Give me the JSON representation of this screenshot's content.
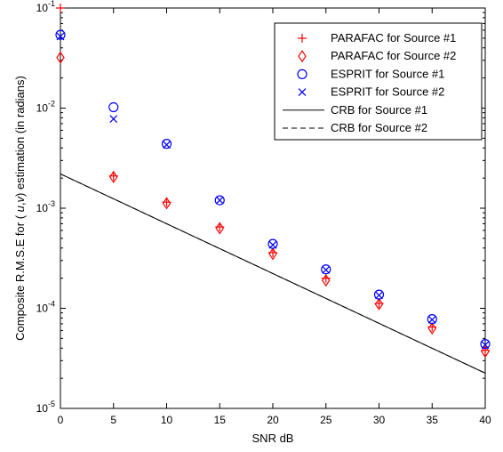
{
  "chart_data": {
    "type": "scatter",
    "xlabel": "SNR dB",
    "ylabel_parts": [
      "Composite R.M.S.E for ( ",
      "u",
      ",",
      "v",
      ") estimation (in radians)"
    ],
    "x_ticks": [
      0,
      5,
      10,
      15,
      20,
      25,
      30,
      35,
      40
    ],
    "y_ticks": [
      {
        "value": 1e-05,
        "base": "10",
        "exp": "-5"
      },
      {
        "value": 0.0001,
        "base": "10",
        "exp": "-4"
      },
      {
        "value": 0.001,
        "base": "10",
        "exp": "-3"
      },
      {
        "value": 0.01,
        "base": "10",
        "exp": "-2"
      },
      {
        "value": 0.1,
        "base": "10",
        "exp": "-1"
      }
    ],
    "xlim": [
      0,
      40
    ],
    "ylim": [
      1e-05,
      0.1
    ],
    "y_scale": "log",
    "grid": false,
    "legend_position": "top-right",
    "series": [
      {
        "name": "PARAFAC for Source #1",
        "marker": "plus",
        "color": "#ff0000",
        "x": [
          0,
          5,
          10,
          15,
          20,
          25,
          30,
          35,
          40
        ],
        "y": [
          0.1,
          0.0021,
          0.00115,
          0.00065,
          0.00036,
          0.0002,
          0.000112,
          6.5e-05,
          3.8e-05
        ]
      },
      {
        "name": "PARAFAC for Source #2",
        "marker": "diamond",
        "color": "#ff0000",
        "x": [
          0,
          5,
          10,
          15,
          20,
          25,
          30,
          35,
          40
        ],
        "y": [
          0.032,
          0.00205,
          0.00112,
          0.00063,
          0.00035,
          0.00019,
          0.00011,
          6.3e-05,
          3.7e-05
        ]
      },
      {
        "name": "ESPRIT for Source #1",
        "marker": "circle",
        "color": "#0000ff",
        "x": [
          0,
          5,
          10,
          15,
          20,
          25,
          30,
          35,
          40
        ],
        "y": [
          0.054,
          0.0102,
          0.0044,
          0.0012,
          0.00044,
          0.000245,
          0.000137,
          7.8e-05,
          4.4e-05
        ]
      },
      {
        "name": "ESPRIT for Source #2",
        "marker": "x",
        "color": "#0000ff",
        "x": [
          0,
          5,
          10,
          15,
          20,
          25,
          30,
          35,
          40
        ],
        "y": [
          0.052,
          0.0078,
          0.0043,
          0.0012,
          0.00043,
          0.000242,
          0.000135,
          7.7e-05,
          4.3e-05
        ]
      },
      {
        "name": "CRB for Source #1",
        "marker": "line-solid",
        "color": "#000000",
        "x": [
          0,
          40
        ],
        "y": [
          0.0022,
          2.25e-05
        ]
      },
      {
        "name": "CRB for Source #2",
        "marker": "line-dashed",
        "color": "#000000",
        "x": [
          0,
          40
        ],
        "y": [
          0.0022,
          2.25e-05
        ]
      }
    ]
  }
}
